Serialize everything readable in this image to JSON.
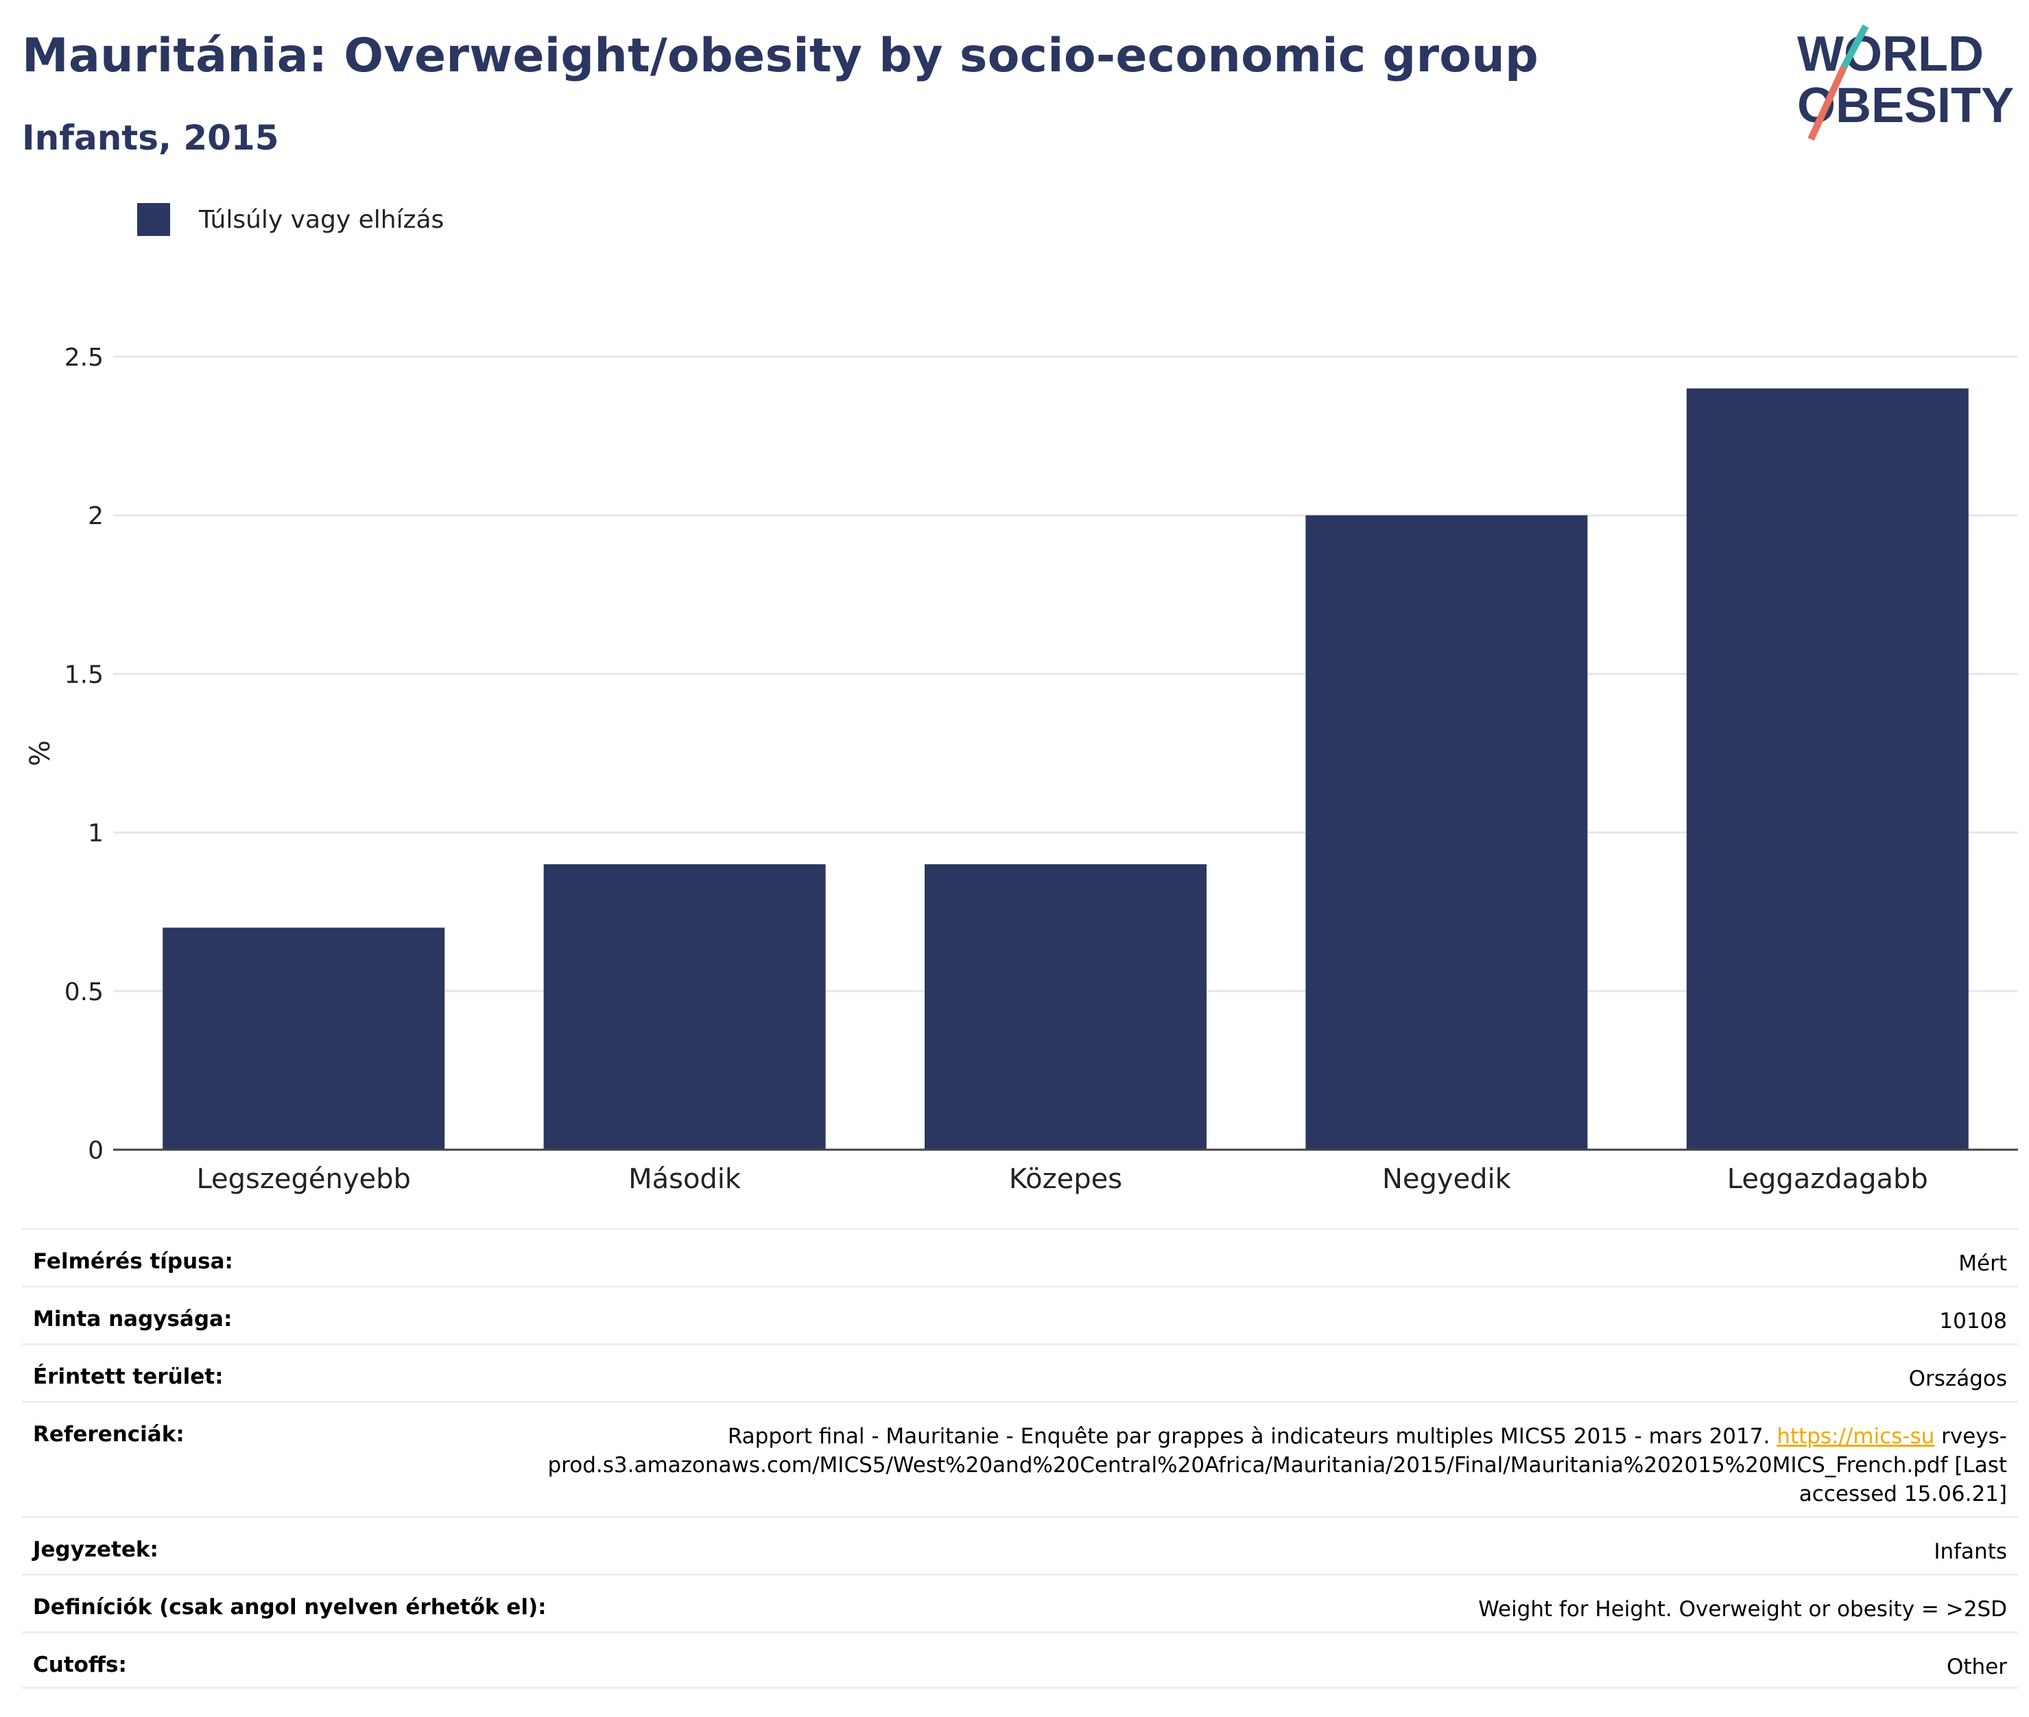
{
  "header": {
    "title": "Mauritánia: Overweight/obesity by socio-economic group",
    "subtitle": "Infants, 2015"
  },
  "logo": {
    "line1": "WORLD",
    "line2": "OBESITY"
  },
  "colors": {
    "bar": "#2b3661",
    "title": "#2b3661",
    "link": "#f2a900"
  },
  "chart_data": {
    "type": "bar",
    "categories": [
      "Legszegényebb",
      "Második",
      "Közepes",
      "Negyedik",
      "Leggazdagabb"
    ],
    "series": [
      {
        "name": "Túlsúly vagy elhízás",
        "values": [
          0.7,
          0.9,
          0.9,
          2.0,
          2.4
        ]
      }
    ],
    "ylabel": "%",
    "ylim": [
      0,
      2.5
    ],
    "yticks": [
      0,
      0.5,
      1,
      1.5,
      2,
      2.5
    ],
    "ytick_labels": [
      "0",
      "0.5",
      "1",
      "1.5",
      "2",
      "2.5"
    ],
    "grid": true,
    "legend": "top-left"
  },
  "details": [
    {
      "key": "Felmérés típusa:",
      "value": "Mért"
    },
    {
      "key": "Minta nagysága:",
      "value": "10108"
    },
    {
      "key": "Érintett terület:",
      "value": "Országos"
    },
    {
      "key": "Referenciák:",
      "value_pre": "Rapport final - Mauritanie - Enquête par grappes à indicateurs multiples MICS5 2015 - mars 2017. ",
      "value_link": "https://mics-su",
      "value_post": " rveys-prod.s3.amazonaws.com/MICS5/West%20and%20Central%20Africa/Mauritania/2015/Final/Mauritania%202015%20MICS_French.pdf [Last accessed 15.06.21]"
    },
    {
      "key": "Jegyzetek:",
      "value": "Infants"
    },
    {
      "key": "Definíciók (csak angol nyelven érhetők el):",
      "value": "Weight for Height. Overweight or obesity = >2SD"
    },
    {
      "key": "Cutoffs:",
      "value": "Other"
    }
  ]
}
